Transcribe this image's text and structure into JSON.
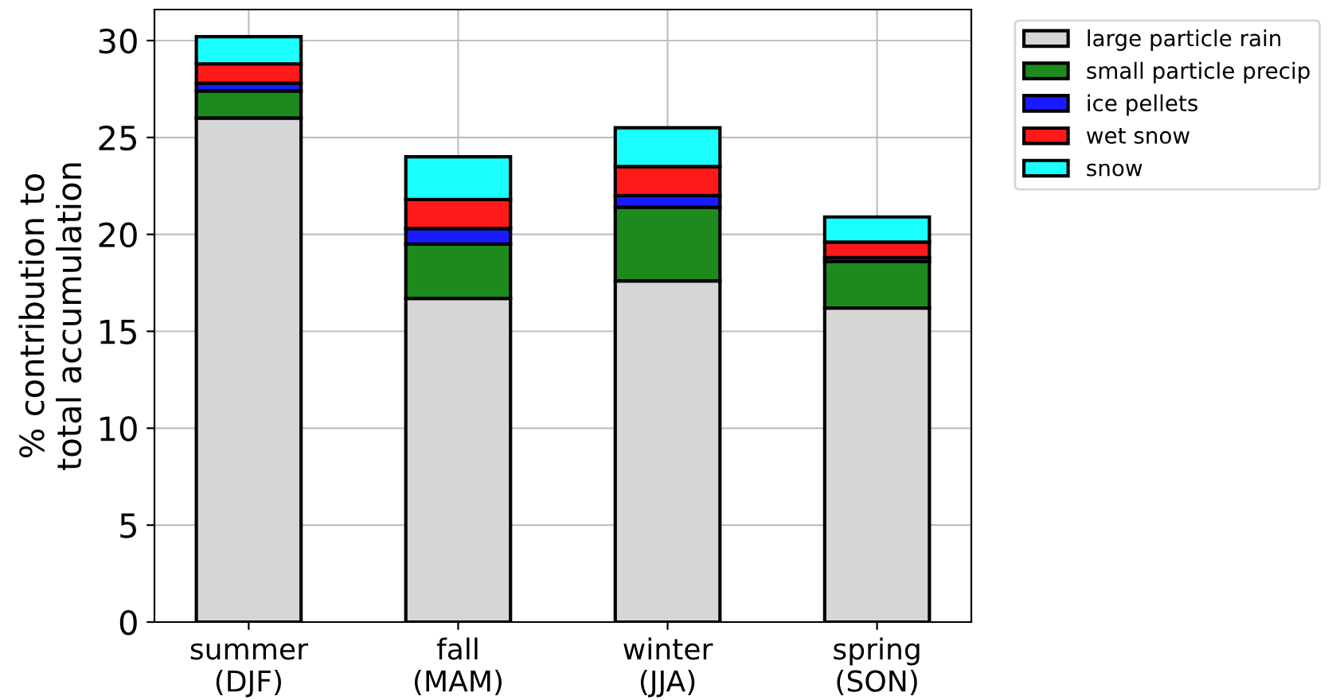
{
  "chart_data": {
    "type": "bar",
    "stacked": true,
    "ylabel": "% contribution to\ntotal accumulation",
    "categories": [
      "summer\n(DJF)",
      "fall\n(MAM)",
      "winter\n(JJA)",
      "spring\n(SON)"
    ],
    "series": [
      {
        "name": "large particle rain",
        "color": "#d6d6d6",
        "values": [
          26.0,
          16.7,
          17.6,
          16.2
        ]
      },
      {
        "name": "small particle precip",
        "color": "#1e8a1e",
        "values": [
          1.4,
          2.8,
          3.8,
          2.4
        ]
      },
      {
        "name": "ice pellets",
        "color": "#1a1aff",
        "values": [
          0.4,
          0.8,
          0.6,
          0.2
        ]
      },
      {
        "name": "wet snow",
        "color": "#ff1a1a",
        "values": [
          1.0,
          1.5,
          1.5,
          0.8
        ]
      },
      {
        "name": "snow",
        "color": "#1affff",
        "values": [
          1.4,
          2.2,
          2.0,
          1.3
        ]
      }
    ],
    "ylim": [
      0,
      31.6
    ],
    "yticks": [
      0,
      5,
      10,
      15,
      20,
      25,
      30
    ],
    "grid": true,
    "legend": "top right"
  }
}
